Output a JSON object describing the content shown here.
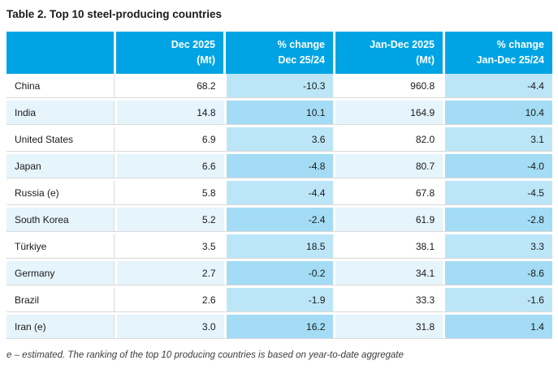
{
  "title": "Table 2. Top 10 steel-producing countries",
  "table": {
    "columns": [
      {
        "line1": "",
        "line2": ""
      },
      {
        "line1": "Dec 2025",
        "line2": "(Mt)"
      },
      {
        "line1": "% change",
        "line2": "Dec 25/24"
      },
      {
        "line1": "Jan-Dec 2025",
        "line2": "(Mt)"
      },
      {
        "line1": "% change",
        "line2": "Jan-Dec 25/24"
      }
    ],
    "rows": [
      {
        "country": "China",
        "dec_mt": "68.2",
        "dec_pct": "-10.3",
        "year_mt": "960.8",
        "year_pct": "-4.4"
      },
      {
        "country": "India",
        "dec_mt": "14.8",
        "dec_pct": "10.1",
        "year_mt": "164.9",
        "year_pct": "10.4"
      },
      {
        "country": "United States",
        "dec_mt": "6.9",
        "dec_pct": "3.6",
        "year_mt": "82.0",
        "year_pct": "3.1"
      },
      {
        "country": "Japan",
        "dec_mt": "6.6",
        "dec_pct": "-4.8",
        "year_mt": "80.7",
        "year_pct": "-4.0"
      },
      {
        "country": "Russia (e)",
        "dec_mt": "5.8",
        "dec_pct": "-4.4",
        "year_mt": "67.8",
        "year_pct": "-4.5"
      },
      {
        "country": "South Korea",
        "dec_mt": "5.2",
        "dec_pct": "-2.4",
        "year_mt": "61.9",
        "year_pct": "-2.8"
      },
      {
        "country": "Türkiye",
        "dec_mt": "3.5",
        "dec_pct": "18.5",
        "year_mt": "38.1",
        "year_pct": "3.3"
      },
      {
        "country": "Germany",
        "dec_mt": "2.7",
        "dec_pct": "-0.2",
        "year_mt": "34.1",
        "year_pct": "-8.6"
      },
      {
        "country": "Brazil",
        "dec_mt": "2.6",
        "dec_pct": "-1.9",
        "year_mt": "33.3",
        "year_pct": "-1.6"
      },
      {
        "country": "Iran (e)",
        "dec_mt": "3.0",
        "dec_pct": "16.2",
        "year_mt": "31.8",
        "year_pct": "1.4"
      }
    ]
  },
  "footnote": "e – estimated. The ranking of the top 10 producing countries is based on year-to-date aggregate",
  "colors": {
    "header_blue": "#00a4e4",
    "row_stripe": "#e6f4fc",
    "pct_cell_on_white_row": "#bce6f8",
    "pct_cell_on_stripe_row": "#a3dcf4",
    "row_border": "#d9d9d9",
    "text": "#1a1a1a",
    "footnote_text": "#3c3c3c"
  }
}
